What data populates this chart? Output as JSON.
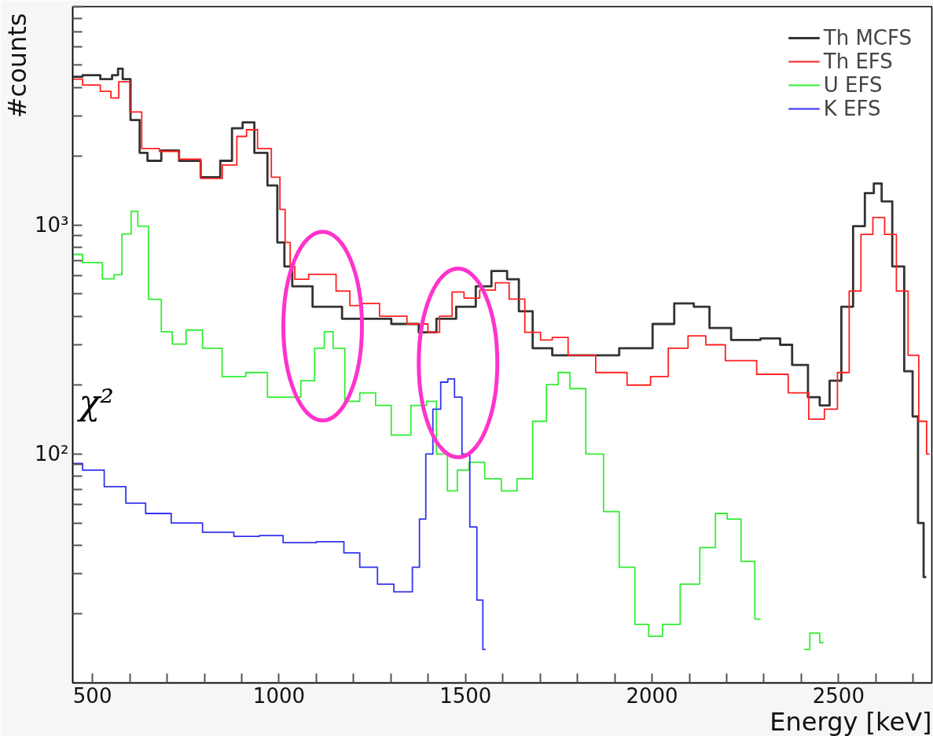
{
  "chart_data": {
    "type": "step",
    "xlabel": "Energy [keV]",
    "ylabel": "#counts",
    "xlim": [
      447,
      2750
    ],
    "ylim": [
      10,
      9000
    ],
    "log": "y",
    "legend": "top right",
    "line_style": "solid",
    "xticks": [
      500,
      {
        "value": 600,
        "label": null
      },
      {
        "value": 700,
        "label": null
      },
      {
        "value": 800,
        "label": null
      },
      {
        "value": 900,
        "label": null
      },
      1000,
      {
        "value": 1100,
        "label": null
      },
      {
        "value": 1200,
        "label": null
      },
      {
        "value": 1300,
        "label": null
      },
      {
        "value": 1400,
        "label": null
      },
      1500,
      {
        "value": 1600,
        "label": null
      },
      {
        "value": 1700,
        "label": null
      },
      {
        "value": 1800,
        "label": null
      },
      {
        "value": 1900,
        "label": null
      },
      2000,
      {
        "value": 2100,
        "label": null
      },
      {
        "value": 2200,
        "label": null
      },
      {
        "value": 2300,
        "label": null
      },
      {
        "value": 2400,
        "label": null
      },
      2500,
      {
        "value": 2600,
        "label": null
      },
      {
        "value": 2700,
        "label": null
      }
    ],
    "yticks": [
      {
        "value": 20,
        "label": null
      },
      {
        "value": 30,
        "label": null
      },
      {
        "value": 40,
        "label": null
      },
      {
        "value": 50,
        "label": null
      },
      {
        "value": 60,
        "label": null
      },
      {
        "value": 70,
        "label": null
      },
      {
        "value": 80,
        "label": null
      },
      {
        "value": 90,
        "label": null
      },
      {
        "value": 100,
        "label": "10²"
      },
      {
        "value": 200,
        "label": null
      },
      {
        "value": 300,
        "label": null
      },
      {
        "value": 400,
        "label": null
      },
      {
        "value": 500,
        "label": null
      },
      {
        "value": 600,
        "label": null
      },
      {
        "value": 700,
        "label": null
      },
      {
        "value": 800,
        "label": null
      },
      {
        "value": 900,
        "label": null
      },
      {
        "value": 1000,
        "label": "10³"
      },
      {
        "value": 2000,
        "label": null
      },
      {
        "value": 3000,
        "label": null
      },
      {
        "value": 4000,
        "label": null
      },
      {
        "value": 5000,
        "label": null
      },
      {
        "value": 6000,
        "label": null
      },
      {
        "value": 7000,
        "label": null
      },
      {
        "value": 8000,
        "label": null
      },
      {
        "value": 9000,
        "label": null
      }
    ],
    "annotations": [
      "χ²"
    ],
    "series": [
      {
        "name": "Th MCFS",
        "color": "#333333",
        "x": [
          447,
          500,
          542,
          563,
          574,
          588,
          616,
          637,
          658,
          711,
          753,
          827,
          858,
          890,
          915,
          953,
          985,
          1006,
          1023,
          1048,
          1132,
          1206,
          1259,
          1343,
          1406,
          1438,
          1512,
          1543,
          1596,
          1627,
          1659,
          1701,
          1764,
          1849,
          1975,
          2028,
          2091,
          2133,
          2175,
          2249,
          2333,
          2354,
          2397,
          2439,
          2460,
          2492,
          2523,
          2555,
          2586,
          2603,
          2628,
          2660,
          2692,
          2705,
          2721,
          2735
        ],
        "values": [
          4450,
          4520,
          4340,
          4520,
          4820,
          4340,
          2880,
          2070,
          1910,
          2120,
          1910,
          1620,
          1910,
          2650,
          2810,
          2070,
          1490,
          840,
          660,
          540,
          440,
          390,
          390,
          370,
          340,
          390,
          440,
          540,
          630,
          580,
          420,
          290,
          270,
          270,
          290,
          370,
          455,
          440,
          355,
          315,
          320,
          300,
          245,
          177,
          163,
          209,
          440,
          990,
          1380,
          1520,
          1270,
          660,
          230,
          146,
          50,
          29
        ]
      },
      {
        "name": "Th EFS",
        "color": "#ff2020",
        "x": [
          447,
          500,
          542,
          557,
          584,
          616,
          648,
          711,
          753,
          827,
          869,
          905,
          921,
          964,
          995,
          1010,
          1023,
          1037,
          1048,
          1111,
          1132,
          1174,
          1206,
          1238,
          1301,
          1385,
          1413,
          1448,
          1480,
          1512,
          1564,
          1596,
          1638,
          1680,
          1722,
          1743,
          1807,
          1891,
          1975,
          2017,
          2070,
          2123,
          2165,
          2228,
          2333,
          2397,
          2443,
          2481,
          2513,
          2544,
          2576,
          2608,
          2639,
          2671,
          2702,
          2728,
          2744
        ],
        "values": [
          4340,
          4090,
          3840,
          3590,
          4230,
          3120,
          2160,
          2100,
          1940,
          1600,
          1830,
          2440,
          2610,
          2160,
          1620,
          1170,
          840,
          660,
          580,
          610,
          610,
          515,
          445,
          455,
          400,
          370,
          340,
          400,
          510,
          480,
          520,
          560,
          475,
          340,
          315,
          323,
          270,
          227,
          200,
          218,
          290,
          328,
          300,
          256,
          223,
          185,
          142,
          157,
          227,
          515,
          910,
          1080,
          910,
          515,
          270,
          139,
          100
        ]
      },
      {
        "name": "U EFS",
        "color": "#33ee33",
        "x": [
          447,
          500,
          553,
          563,
          595,
          612,
          631,
          669,
          700,
          728,
          774,
          816,
          879,
          943,
          995,
          1037,
          1080,
          1111,
          1132,
          1158,
          1195,
          1238,
          1280,
          1322,
          1385,
          1406,
          1438,
          1465,
          1491,
          1528,
          1575,
          1617,
          1659,
          1701,
          1733,
          1764,
          1796,
          1849,
          1891,
          1933,
          1975,
          2007,
          2049,
          2102,
          2154,
          2186,
          2217,
          2260,
          2291,
          2323,
          2375,
          2407,
          2439,
          2460
        ],
        "values": [
          745,
          686,
          582,
          607,
          914,
          1150,
          990,
          474,
          342,
          302,
          348,
          290,
          218,
          227,
          177,
          177,
          209,
          290,
          342,
          290,
          170,
          185,
          163,
          121,
          163,
          170,
          100,
          69,
          85,
          92,
          78,
          69,
          78,
          139,
          201,
          227,
          193,
          100,
          56,
          32,
          18,
          16,
          18,
          27,
          39,
          55,
          52,
          34,
          19,
          null,
          null,
          14,
          16.5,
          15
        ]
      },
      {
        "name": "K EFS",
        "color": "#3333ee",
        "x": [
          447,
          500,
          563,
          616,
          669,
          753,
          837,
          921,
          974,
          1048,
          1153,
          1195,
          1238,
          1290,
          1326,
          1347,
          1368,
          1385,
          1402,
          1423,
          1444,
          1461,
          1480,
          1501,
          1522,
          1539,
          1554
        ],
        "values": [
          91,
          85,
          72,
          61,
          55,
          50,
          45.5,
          43.7,
          44,
          41,
          41.4,
          37,
          32,
          27,
          25,
          25,
          32,
          52,
          100,
          157,
          206,
          213,
          177,
          100,
          48,
          23,
          14
        ]
      }
    ]
  }
}
